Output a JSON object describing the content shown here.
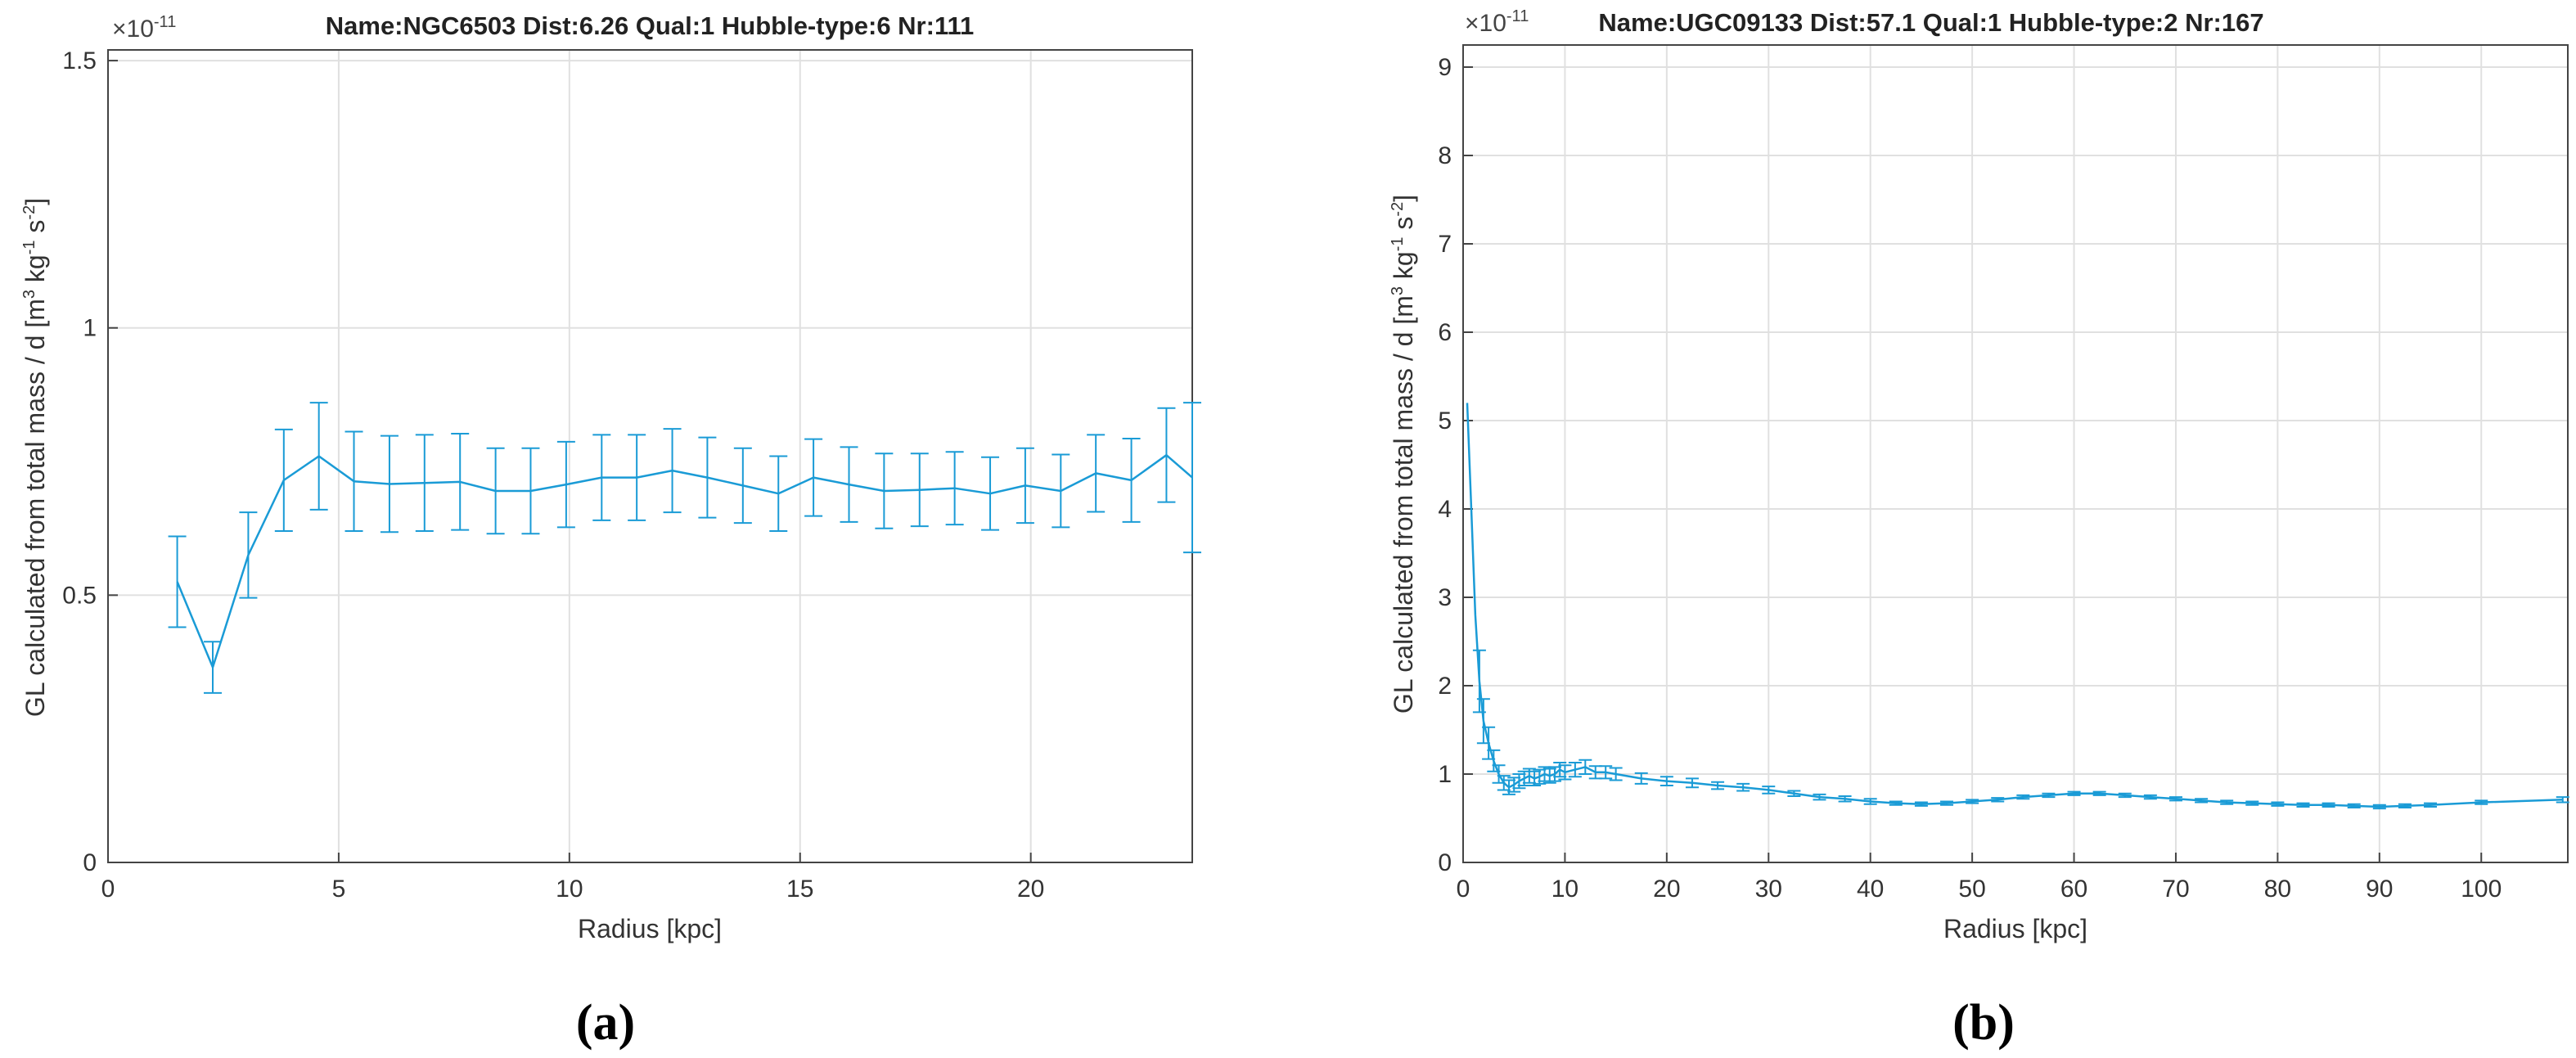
{
  "colors": {
    "series": "#1a9bd6",
    "grid": "#e0e0e0",
    "axis": "#444444"
  },
  "chart_data": [
    {
      "type": "line",
      "error_bars": true,
      "panel_label": "(a)",
      "title": "Name:NGC6503 Dist:6.26 Qual:1 Hubble-type:6 Nr:111",
      "xlabel": "Radius [kpc]",
      "ylabel_main": "GL calculated from total mass / d [m",
      "ylabel_sup1": "3",
      "ylabel_mid1": " kg",
      "ylabel_sup2": "-1",
      "ylabel_mid2": " s",
      "ylabel_sup3": "-2",
      "ylabel_end": "]",
      "multiplier_base": "×10",
      "multiplier_exp": "-11",
      "xlim": [
        0,
        23.5
      ],
      "ylim": [
        0,
        1.52
      ],
      "grid": true,
      "xticks": [
        0,
        5,
        10,
        15,
        20
      ],
      "yticks": [
        0,
        0.5,
        1,
        1.5
      ],
      "ytick_labels": [
        "0",
        "0.5",
        "1",
        "1.5"
      ],
      "x": [
        1.5,
        2.27,
        3.04,
        3.81,
        4.57,
        5.33,
        6.1,
        6.86,
        7.63,
        8.4,
        9.16,
        9.93,
        10.7,
        11.46,
        12.23,
        12.99,
        13.76,
        14.53,
        15.29,
        16.06,
        16.82,
        17.59,
        18.35,
        19.12,
        19.88,
        20.65,
        21.41,
        22.18,
        22.94,
        23.5
      ],
      "y": [
        0.525,
        0.365,
        0.575,
        0.715,
        0.76,
        0.713,
        0.708,
        0.71,
        0.712,
        0.695,
        0.695,
        0.707,
        0.72,
        0.72,
        0.733,
        0.72,
        0.705,
        0.69,
        0.72,
        0.707,
        0.695,
        0.697,
        0.7,
        0.69,
        0.705,
        0.695,
        0.728,
        0.715,
        0.762,
        0.72
      ],
      "err": [
        0.085,
        0.048,
        0.08,
        0.095,
        0.1,
        0.093,
        0.09,
        0.09,
        0.09,
        0.08,
        0.08,
        0.08,
        0.08,
        0.08,
        0.078,
        0.075,
        0.07,
        0.07,
        0.072,
        0.07,
        0.07,
        0.068,
        0.068,
        0.068,
        0.07,
        0.068,
        0.072,
        0.078,
        0.088,
        0.14
      ]
    },
    {
      "type": "line",
      "error_bars": true,
      "panel_label": "(b)",
      "title": "Name:UGC09133 Dist:57.1 Qual:1 Hubble-type:2 Nr:167",
      "xlabel": "Radius [kpc]",
      "ylabel_main": "GL calculated from total mass / d [m",
      "ylabel_sup1": "3",
      "ylabel_mid1": " kg",
      "ylabel_sup2": "-1",
      "ylabel_mid2": " s",
      "ylabel_sup3": "-2",
      "ylabel_end": "]",
      "multiplier_base": "×10",
      "multiplier_exp": "-11",
      "xlim": [
        0,
        108.5
      ],
      "ylim": [
        0,
        9.25
      ],
      "grid": true,
      "xticks": [
        0,
        10,
        20,
        30,
        40,
        50,
        60,
        70,
        80,
        90,
        100
      ],
      "yticks": [
        0,
        1,
        2,
        3,
        4,
        5,
        6,
        7,
        8,
        9
      ],
      "ytick_labels": [
        "0",
        "1",
        "2",
        "3",
        "4",
        "5",
        "6",
        "7",
        "8",
        "9"
      ],
      "x": [
        0.4,
        0.8,
        1.2,
        1.6,
        2.0,
        2.5,
        3.0,
        3.5,
        4.0,
        4.5,
        5.0,
        5.5,
        6.0,
        6.5,
        7.0,
        7.5,
        8.0,
        8.5,
        9.0,
        9.5,
        10.0,
        11.0,
        12.0,
        13.0,
        14.0,
        15.0,
        17.5,
        20.0,
        22.5,
        25.0,
        27.5,
        30.0,
        32.5,
        35.0,
        37.5,
        40.0,
        42.5,
        45.0,
        47.5,
        50.0,
        52.5,
        55.0,
        57.5,
        60.0,
        62.5,
        65.0,
        67.5,
        70.0,
        72.5,
        75.0,
        77.5,
        80.0,
        82.5,
        85.0,
        87.5,
        90.0,
        92.5,
        95.0,
        100.0,
        108.0
      ],
      "y": [
        5.2,
        4.0,
        2.8,
        2.05,
        1.6,
        1.35,
        1.15,
        1.0,
        0.9,
        0.85,
        0.88,
        0.92,
        0.95,
        0.98,
        0.95,
        0.97,
        1.0,
        0.98,
        1.0,
        1.05,
        1.02,
        1.05,
        1.08,
        1.02,
        1.02,
        1.0,
        0.95,
        0.92,
        0.9,
        0.87,
        0.85,
        0.82,
        0.78,
        0.74,
        0.72,
        0.69,
        0.67,
        0.66,
        0.67,
        0.69,
        0.71,
        0.74,
        0.76,
        0.78,
        0.78,
        0.76,
        0.74,
        0.72,
        0.7,
        0.68,
        0.67,
        0.66,
        0.65,
        0.65,
        0.64,
        0.63,
        0.64,
        0.65,
        0.68,
        0.71
      ],
      "err": [
        0.0,
        0.0,
        0.0,
        0.35,
        0.25,
        0.18,
        0.12,
        0.1,
        0.08,
        0.08,
        0.08,
        0.08,
        0.08,
        0.08,
        0.08,
        0.08,
        0.08,
        0.08,
        0.08,
        0.08,
        0.08,
        0.08,
        0.08,
        0.07,
        0.07,
        0.07,
        0.06,
        0.05,
        0.05,
        0.04,
        0.04,
        0.04,
        0.03,
        0.03,
        0.03,
        0.03,
        0.02,
        0.02,
        0.02,
        0.02,
        0.02,
        0.02,
        0.02,
        0.02,
        0.02,
        0.02,
        0.02,
        0.02,
        0.02,
        0.02,
        0.02,
        0.02,
        0.02,
        0.02,
        0.02,
        0.02,
        0.02,
        0.02,
        0.02,
        0.03
      ]
    }
  ]
}
